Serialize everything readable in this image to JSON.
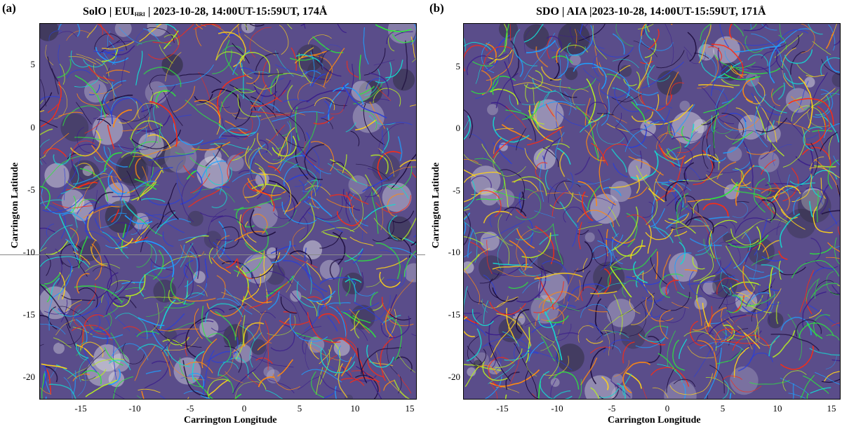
{
  "panel_a": {
    "letter": "(a)",
    "title_prefix": "SolO | EUI",
    "title_sub": "HRI",
    "title_suffix": " | 2023-10-28, 14:00UT-15:59UT, 174Å",
    "xlabel": "Carrington Longitude",
    "ylabel": "Carrington Latitude",
    "xticks": [
      "-15",
      "-10",
      "-5",
      "0",
      "5",
      "10",
      "15"
    ],
    "yticks": [
      "5",
      "0",
      "-5",
      "-10",
      "-15",
      "-20"
    ]
  },
  "panel_b": {
    "letter": "(b)",
    "title": "SDO | AIA |2023-10-28, 14:00UT-15:59UT, 171Å",
    "xlabel": "Carrington Longitude",
    "ylabel": "Carrington Latitude",
    "xticks": [
      "-15",
      "-10",
      "-5",
      "0",
      "5",
      "10",
      "15"
    ],
    "yticks": [
      "5",
      "0",
      "-5",
      "-10",
      "-15",
      "-20"
    ]
  },
  "colors": {
    "streamline_palette": [
      "#1a0a3a",
      "#3b1f8a",
      "#2a3fd8",
      "#1ea0ff",
      "#16d8d0",
      "#2bea3a",
      "#b8f020",
      "#ffd21a",
      "#ff8a10",
      "#ff2a10"
    ],
    "background": "#5a4d8a"
  }
}
